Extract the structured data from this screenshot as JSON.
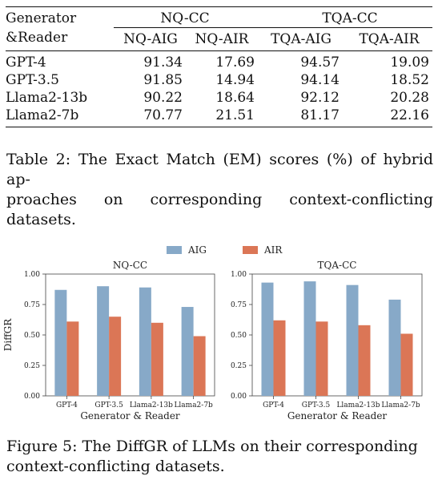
{
  "table": {
    "header_col": [
      "Generator",
      "&Reader"
    ],
    "groups": [
      "NQ-CC",
      "TQA-CC"
    ],
    "subheaders": [
      "NQ-AIG",
      "NQ-AIR",
      "TQA-AIG",
      "TQA-AIR"
    ],
    "rows": [
      {
        "name": "GPT-4",
        "values": [
          "91.34",
          "17.69",
          "94.57",
          "19.09"
        ]
      },
      {
        "name": "GPT-3.5",
        "values": [
          "91.85",
          "14.94",
          "94.14",
          "18.52"
        ]
      },
      {
        "name": "Llama2-13b",
        "values": [
          "90.22",
          "18.64",
          "92.12",
          "20.28"
        ]
      },
      {
        "name": "Llama2-7b",
        "values": [
          "70.77",
          "21.51",
          "81.17",
          "22.16"
        ]
      }
    ],
    "caption_lines": [
      "Table 2: The Exact Match (EM) scores (%) of hybrid ap-",
      "proaches on corresponding context-conflicting datasets."
    ]
  },
  "figure": {
    "caption_lines": [
      "Figure 5: The DiffGR of LLMs on their corresponding",
      "context-conflicting datasets."
    ]
  },
  "chart_data": {
    "type": "bar",
    "legend": [
      "AIG",
      "AIR"
    ],
    "legend_placement": "top-center",
    "colors": {
      "AIG": "#87a9c8",
      "AIR": "#db7656"
    },
    "ylabel": "DiffGR",
    "xlabel": "Generator & Reader",
    "ylim": [
      0,
      1
    ],
    "yticks": [
      "0.00",
      "0.25",
      "0.50",
      "0.75",
      "1.00"
    ],
    "grid": false,
    "categories": [
      "GPT-4",
      "GPT-3.5",
      "Llama2-13b",
      "Llama2-7b"
    ],
    "panels": [
      {
        "title": "NQ-CC",
        "series": [
          {
            "name": "AIG",
            "values": [
              0.87,
              0.9,
              0.89,
              0.73
            ]
          },
          {
            "name": "AIR",
            "values": [
              0.61,
              0.65,
              0.6,
              0.49
            ]
          }
        ]
      },
      {
        "title": "TQA-CC",
        "series": [
          {
            "name": "AIG",
            "values": [
              0.93,
              0.94,
              0.91,
              0.79
            ]
          },
          {
            "name": "AIR",
            "values": [
              0.62,
              0.61,
              0.58,
              0.51
            ]
          }
        ]
      }
    ]
  }
}
